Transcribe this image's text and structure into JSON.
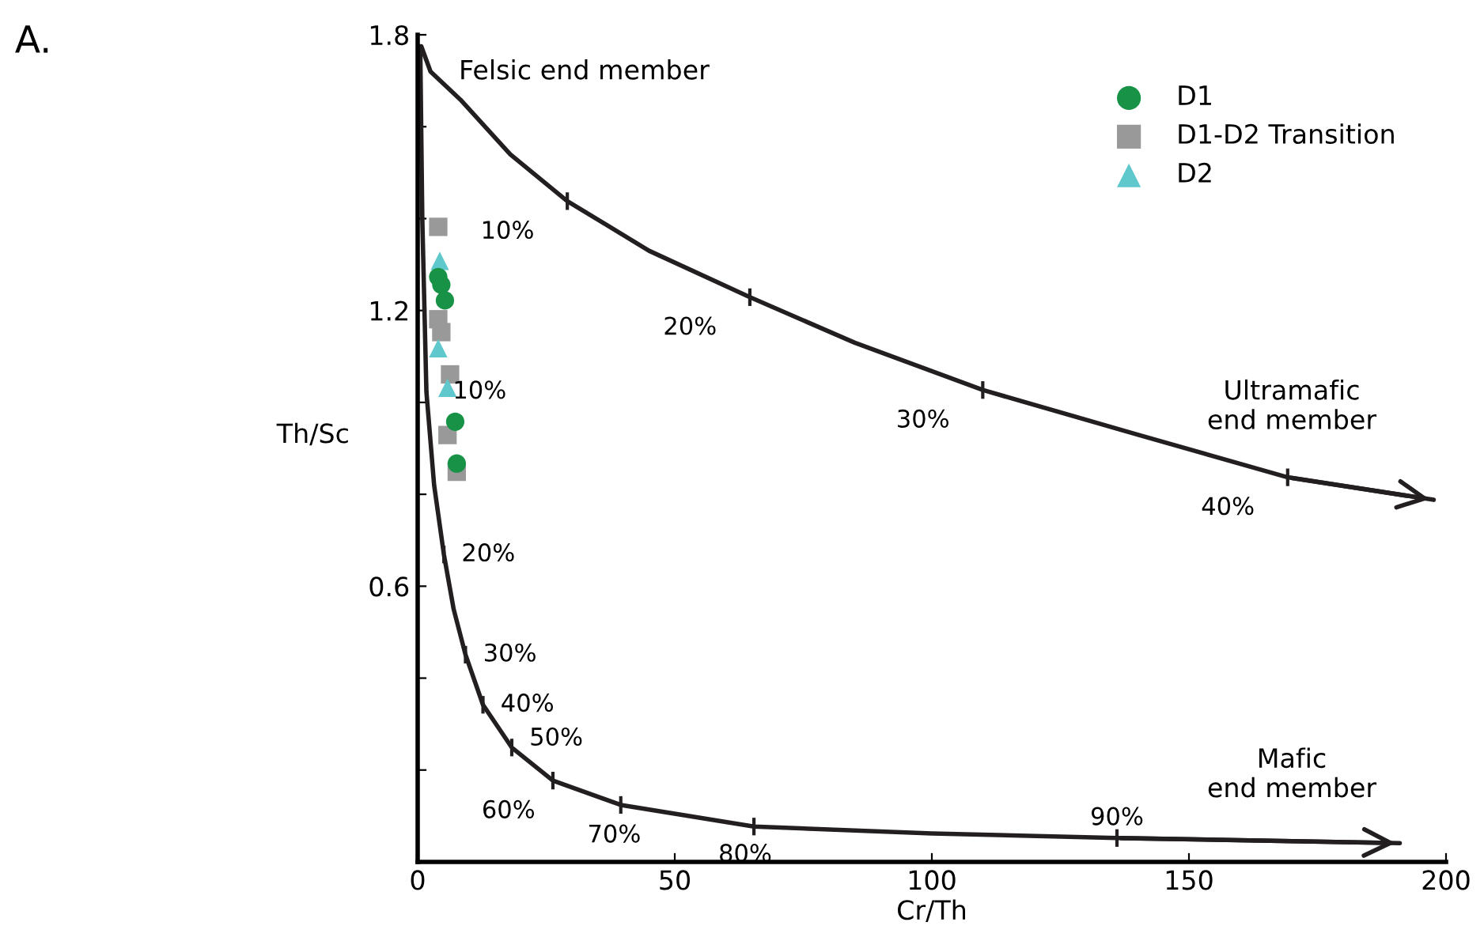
{
  "chart_data": {
    "type": "scatter",
    "xlabel": "Cr/Th",
    "ylabel": "Th/Sc",
    "xlim": [
      0,
      200
    ],
    "ylim": [
      0,
      1.8
    ],
    "xticks": [
      0,
      50,
      100,
      150,
      200
    ],
    "yticks": [
      {
        "value": 0.2,
        "label": null
      },
      {
        "value": 0.4,
        "label": null
      },
      0.6,
      {
        "value": 0.8,
        "label": null
      },
      {
        "value": 1.0,
        "label": null
      },
      1.2,
      {
        "value": 1.4,
        "label": null
      },
      {
        "value": 1.6,
        "label": null
      },
      1.8
    ],
    "grid": false,
    "legend": "top right",
    "series": [
      {
        "name": "D1",
        "color": "#179247",
        "marker": "circle",
        "x": [
          4.0,
          4.6,
          5.3,
          7.3,
          7.6
        ],
        "values": [
          1.273,
          1.256,
          1.222,
          0.958,
          0.867
        ]
      },
      {
        "name": "D1-D2 Transition",
        "color": "#999999",
        "marker": "square",
        "x": [
          4.0,
          4.0,
          4.6,
          6.3,
          5.8,
          7.6
        ],
        "values": [
          1.382,
          1.181,
          1.153,
          1.061,
          0.929,
          0.849
        ]
      },
      {
        "name": "D2",
        "color": "#5fc8cc",
        "marker": "triangle",
        "x": [
          4.3,
          4.0,
          5.8
        ],
        "values": [
          1.308,
          1.118,
          1.032
        ]
      },
      {
        "type": "line",
        "color": "#231f20",
        "x": [
          0.7,
          2.5,
          8.3,
          18,
          29.1,
          45,
          64.6,
          85,
          109.9,
          140,
          169.2,
          197.6
        ],
        "values": [
          1.775,
          1.72,
          1.659,
          1.54,
          1.438,
          1.33,
          1.229,
          1.13,
          1.027,
          0.93,
          0.837,
          0.788
        ]
      },
      {
        "type": "line",
        "color": "#231f20",
        "x": [
          0.5,
          0.9,
          1.7,
          3.2,
          5.1,
          7.0,
          9.3,
          12.7,
          18.3,
          26.3,
          39.5,
          65.4,
          100,
          136,
          191
        ],
        "values": [
          1.775,
          1.4,
          1.023,
          0.82,
          0.669,
          0.55,
          0.451,
          0.342,
          0.249,
          0.177,
          0.124,
          0.077,
          0.062,
          0.052,
          0.041
        ]
      }
    ],
    "annotations": [
      "A.",
      "Felsic end member",
      "Ultramafic\nend member",
      "Mafic\nend member",
      {
        "text": "10%",
        "x": 29.1,
        "y": 1.438
      },
      {
        "text": "20%",
        "x": 64.6,
        "y": 1.229
      },
      {
        "text": "30%",
        "x": 109.9,
        "y": 1.027
      },
      {
        "text": "40%",
        "x": 169.2,
        "y": 0.837
      },
      {
        "text": "10%",
        "x": 1.7,
        "y": 1.023
      },
      {
        "text": "20%",
        "x": 5.1,
        "y": 0.669
      },
      {
        "text": "30%",
        "x": 9.3,
        "y": 0.451
      },
      {
        "text": "40%",
        "x": 12.7,
        "y": 0.342
      },
      {
        "text": "50%",
        "x": 18.3,
        "y": 0.249
      },
      {
        "text": "60%",
        "x": 26.3,
        "y": 0.177
      },
      {
        "text": "70%",
        "x": 39.5,
        "y": 0.124
      },
      {
        "text": "80%",
        "x": 65.4,
        "y": 0.077
      },
      {
        "text": "90%",
        "x": 136,
        "y": 0.052
      }
    ]
  }
}
